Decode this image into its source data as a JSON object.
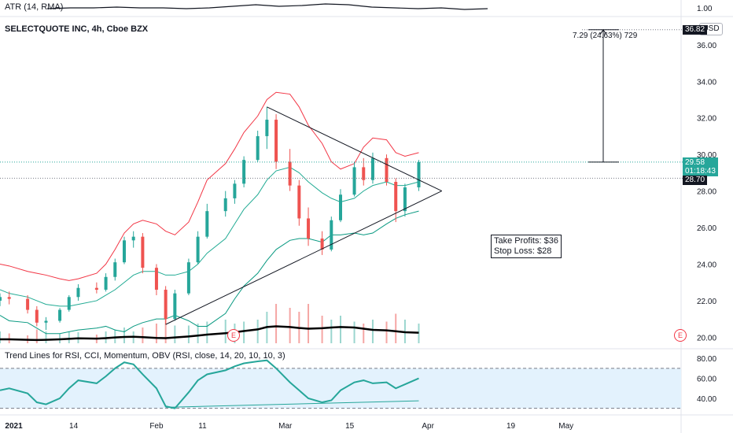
{
  "chart_data": [
    {
      "type": "line",
      "pane": "atr",
      "title": "ATR (14, RMA)",
      "yticks": [
        "1.00"
      ],
      "ylim": [
        0.9,
        1.1
      ],
      "series": [
        {
          "name": "ATR",
          "color": "#131722",
          "values": [
            0.99,
            1.0,
            1.0,
            1.01,
            1.0,
            1.0,
            0.99,
            1.0,
            1.02,
            1.04,
            1.02,
            1.03,
            1.05,
            1.04,
            1.01,
            1.0,
            0.99,
            1.0,
            0.98,
            0.99
          ]
        }
      ]
    },
    {
      "type": "candlestick",
      "pane": "price",
      "title": "SELECTQUOTE INC, 4h, Cboe BZX",
      "currency": "USD",
      "ylim": [
        19.5,
        37.5
      ],
      "yticks": [
        "20.00",
        "22.00",
        "24.00",
        "26.00",
        "28.00",
        "30.00",
        "32.00",
        "34.00",
        "36.00"
      ],
      "xticks": [
        "2021",
        "14",
        "Feb",
        "11",
        "Mar",
        "15",
        "Apr",
        "19",
        "May"
      ],
      "xtick_dates": [
        "2021-01-01",
        "2021-01-14",
        "2021-02-01",
        "2021-02-11",
        "2021-03-01",
        "2021-03-15",
        "2021-04-01",
        "2021-04-19",
        "2021-05-01"
      ],
      "xlim": [
        "2020-12-29",
        "2021-05-26"
      ],
      "last_price": "29.58",
      "countdown": "01:18:43",
      "level_target": "36.82",
      "level_support": "28.70",
      "ohlc": [
        [
          "2020-12-29",
          22.0,
          22.4,
          21.7,
          22.2
        ],
        [
          "2020-12-31",
          22.2,
          22.5,
          21.8,
          22.1
        ],
        [
          "2021-01-04",
          22.1,
          22.3,
          21.3,
          21.5
        ],
        [
          "2021-01-06",
          21.5,
          21.7,
          20.6,
          20.8
        ],
        [
          "2021-01-08",
          20.8,
          21.1,
          20.4,
          20.9
        ],
        [
          "2021-01-11",
          20.9,
          21.6,
          20.8,
          21.5
        ],
        [
          "2021-01-13",
          21.5,
          22.3,
          21.4,
          22.2
        ],
        [
          "2021-01-15",
          22.2,
          22.9,
          22.0,
          22.7
        ],
        [
          "2021-01-19",
          22.7,
          23.0,
          22.4,
          22.6
        ],
        [
          "2021-01-21",
          22.6,
          23.5,
          22.5,
          23.3
        ],
        [
          "2021-01-23",
          23.3,
          24.3,
          23.1,
          24.1
        ],
        [
          "2021-01-25",
          24.1,
          25.5,
          24.0,
          25.3
        ],
        [
          "2021-01-27",
          25.3,
          25.8,
          24.9,
          25.5
        ],
        [
          "2021-01-29",
          25.5,
          25.7,
          23.5,
          23.8
        ],
        [
          "2021-02-01",
          23.8,
          24.0,
          22.3,
          22.6
        ],
        [
          "2021-02-03",
          22.6,
          22.8,
          20.7,
          21.0
        ],
        [
          "2021-02-05",
          21.0,
          22.6,
          20.9,
          22.4
        ],
        [
          "2021-02-08",
          22.4,
          24.3,
          22.3,
          24.1
        ],
        [
          "2021-02-10",
          24.1,
          25.8,
          24.0,
          25.5
        ],
        [
          "2021-02-12",
          25.5,
          27.3,
          25.4,
          26.9
        ],
        [
          "2021-02-16",
          26.9,
          28.0,
          26.6,
          27.6
        ],
        [
          "2021-02-18",
          27.6,
          28.6,
          27.3,
          28.4
        ],
        [
          "2021-02-20",
          28.4,
          29.9,
          28.2,
          29.7
        ],
        [
          "2021-02-23",
          29.7,
          31.3,
          29.6,
          31.0
        ],
        [
          "2021-02-25",
          31.0,
          32.6,
          30.3,
          31.9
        ],
        [
          "2021-02-27",
          31.9,
          32.2,
          29.2,
          29.6
        ],
        [
          "2021-03-02",
          29.6,
          30.3,
          28.0,
          28.3
        ],
        [
          "2021-03-04",
          28.3,
          28.6,
          26.1,
          26.5
        ],
        [
          "2021-03-06",
          26.5,
          27.1,
          25.0,
          25.4
        ],
        [
          "2021-03-09",
          25.4,
          25.8,
          24.5,
          24.8
        ],
        [
          "2021-03-11",
          24.8,
          26.6,
          24.7,
          26.4
        ],
        [
          "2021-03-13",
          26.4,
          28.1,
          26.3,
          27.8
        ],
        [
          "2021-03-16",
          27.8,
          29.6,
          27.7,
          29.3
        ],
        [
          "2021-03-18",
          29.3,
          29.8,
          28.3,
          28.6
        ],
        [
          "2021-03-20",
          28.6,
          30.1,
          28.4,
          29.8
        ],
        [
          "2021-03-23",
          29.8,
          30.0,
          28.3,
          28.5
        ],
        [
          "2021-03-25",
          28.5,
          28.7,
          26.3,
          26.9
        ],
        [
          "2021-03-27",
          26.9,
          28.4,
          26.6,
          28.2
        ],
        [
          "2021-03-30",
          28.2,
          29.7,
          28.0,
          29.58
        ]
      ],
      "bb_mid": [
        22.6,
        22.4,
        22.2,
        22.0,
        21.8,
        21.7,
        21.7,
        21.8,
        22.0,
        22.3,
        22.6,
        23.0,
        23.4,
        23.6,
        23.6,
        23.4,
        23.4,
        23.6,
        24.0,
        24.6,
        25.4,
        26.2,
        27.0,
        27.8,
        28.6,
        29.1,
        29.3,
        29.0,
        28.5,
        27.9,
        27.6,
        27.4,
        27.6,
        28.0,
        28.3,
        28.5,
        28.3,
        28.3,
        28.5
      ],
      "bb_upper": [
        24.0,
        23.9,
        23.6,
        23.5,
        23.4,
        23.2,
        23.1,
        23.2,
        23.5,
        24.0,
        24.8,
        25.7,
        26.2,
        26.4,
        26.2,
        25.8,
        25.6,
        26.3,
        27.4,
        28.6,
        29.5,
        30.3,
        31.2,
        32.1,
        33.0,
        33.4,
        33.3,
        32.6,
        31.6,
        30.6,
        29.6,
        29.2,
        29.5,
        30.4,
        30.9,
        30.8,
        30.1,
        29.9,
        30.1
      ],
      "bb_lower": [
        21.2,
        20.9,
        20.8,
        20.5,
        20.2,
        20.2,
        20.3,
        20.4,
        20.5,
        20.6,
        20.4,
        20.3,
        20.6,
        20.8,
        21.0,
        21.0,
        21.2,
        20.9,
        20.6,
        20.6,
        21.3,
        22.1,
        22.8,
        23.5,
        24.2,
        24.8,
        25.3,
        25.4,
        25.4,
        25.2,
        25.6,
        25.6,
        25.7,
        25.6,
        25.7,
        26.2,
        26.5,
        26.7,
        26.9
      ],
      "volume": [
        0.3,
        0.25,
        0.2,
        0.35,
        0.3,
        0.25,
        0.3,
        0.28,
        0.22,
        0.3,
        0.35,
        0.4,
        0.3,
        0.4,
        0.5,
        0.7,
        0.45,
        0.45,
        0.5,
        0.55,
        0.6,
        0.5,
        0.55,
        0.6,
        0.8,
        1.0,
        0.9,
        0.8,
        1.0,
        0.7,
        0.6,
        0.7,
        0.55,
        0.5,
        0.6,
        0.55,
        0.75,
        0.6,
        0.5
      ],
      "obv": [
        0.1,
        0.1,
        0.08,
        0.07,
        0.08,
        0.1,
        0.12,
        0.14,
        0.13,
        0.15,
        0.18,
        0.2,
        0.21,
        0.19,
        0.16,
        0.15,
        0.18,
        0.22,
        0.26,
        0.3,
        0.36,
        0.4,
        0.45,
        0.52,
        0.62,
        0.65,
        0.62,
        0.58,
        0.55,
        0.57,
        0.6,
        0.62,
        0.6,
        0.55,
        0.5,
        0.48,
        0.44,
        0.4,
        0.38
      ],
      "annotations": {
        "take_profits": "Take Profits: $36",
        "stop_loss": "Stop Loss: $28",
        "measure": "7.29 (24.63%) 729",
        "earnings_marker": "E"
      }
    },
    {
      "type": "line",
      "pane": "rsi",
      "title": "Trend Lines for RSI, CCI, Momentum, OBV (RSI, close, 14, 20, 10, 10, 3)",
      "ylim": [
        25,
        88
      ],
      "yticks": [
        "40.00",
        "60.00",
        "80.00"
      ],
      "band": [
        30,
        70
      ],
      "series": [
        {
          "name": "RSI",
          "color": "#26a69a",
          "values": [
            48,
            50,
            45,
            36,
            34,
            40,
            50,
            58,
            55,
            62,
            70,
            76,
            74,
            64,
            50,
            32,
            30,
            46,
            58,
            64,
            68,
            72,
            75,
            77,
            78,
            70,
            56,
            48,
            40,
            36,
            38,
            48,
            56,
            58,
            55,
            56,
            50,
            54,
            60
          ]
        }
      ]
    }
  ],
  "colors": {
    "up": "#26a69a",
    "down": "#ef5350",
    "bb_upper": "#f23645",
    "bb_mid": "#22ab94",
    "bb_lower": "#089981",
    "trendline": "#131722",
    "rsi_fill": "#e3f2fd",
    "price_tag": "#26a69a",
    "level_tag": "#131722"
  },
  "ui": {
    "currency_button": "USD"
  }
}
